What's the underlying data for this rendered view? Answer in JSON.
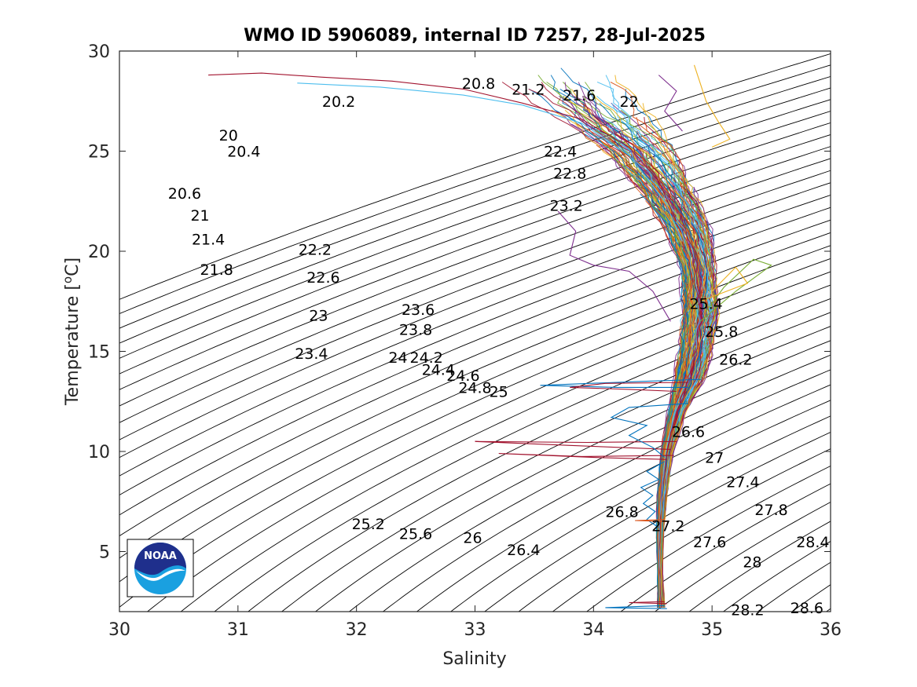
{
  "chart_data": {
    "type": "line",
    "title": "WMO ID 5906089, internal ID 7257, 28-Jul-2025",
    "xlabel": "Salinity",
    "ylabel": "Temperature [",
    "ylabel_sup": "o",
    "ylabel_unit": "C]",
    "xlim": [
      30,
      36
    ],
    "ylim": [
      2,
      30
    ],
    "xticks": [
      "30",
      "31",
      "32",
      "33",
      "34",
      "35",
      "36"
    ],
    "yticks": [
      "5",
      "10",
      "15",
      "20",
      "25",
      "30"
    ],
    "grid": false,
    "logo": {
      "name": "noaa-logo",
      "text": "NOAA",
      "colors": {
        "top": "#1f2f8c",
        "bottom": "#1aa0e0"
      }
    },
    "density_contours": {
      "range": [
        19.0,
        29.2
      ],
      "step": 0.2,
      "color": "#000000",
      "labels": [
        {
          "text": "20",
          "s": 30.92,
          "t": 25.8
        },
        {
          "text": "20.2",
          "s": 31.85,
          "t": 27.5
        },
        {
          "text": "20.4",
          "s": 31.05,
          "t": 25.0
        },
        {
          "text": "20.6",
          "s": 30.55,
          "t": 22.9
        },
        {
          "text": "20.8",
          "s": 33.03,
          "t": 28.4
        },
        {
          "text": "21",
          "s": 30.68,
          "t": 21.8
        },
        {
          "text": "21.2",
          "s": 33.45,
          "t": 28.1
        },
        {
          "text": "21.4",
          "s": 30.75,
          "t": 20.6
        },
        {
          "text": "21.6",
          "s": 33.88,
          "t": 27.8
        },
        {
          "text": "21.8",
          "s": 30.82,
          "t": 19.1
        },
        {
          "text": "22",
          "s": 34.3,
          "t": 27.5
        },
        {
          "text": "22.2",
          "s": 31.65,
          "t": 20.1
        },
        {
          "text": "22.4",
          "s": 33.72,
          "t": 25.0
        },
        {
          "text": "22.6",
          "s": 31.72,
          "t": 18.7
        },
        {
          "text": "22.8",
          "s": 33.8,
          "t": 23.9
        },
        {
          "text": "23",
          "s": 31.68,
          "t": 16.8
        },
        {
          "text": "23.2",
          "s": 33.77,
          "t": 22.3
        },
        {
          "text": "23.4",
          "s": 31.62,
          "t": 14.9
        },
        {
          "text": "23.6",
          "s": 32.52,
          "t": 17.1
        },
        {
          "text": "23.8",
          "s": 32.5,
          "t": 16.1
        },
        {
          "text": "24",
          "s": 32.35,
          "t": 14.7
        },
        {
          "text": "24.2",
          "s": 32.59,
          "t": 14.7
        },
        {
          "text": "24.4",
          "s": 32.69,
          "t": 14.1
        },
        {
          "text": "24.6",
          "s": 32.9,
          "t": 13.8
        },
        {
          "text": "24.8",
          "s": 33.0,
          "t": 13.2
        },
        {
          "text": "25",
          "s": 33.2,
          "t": 13.0
        },
        {
          "text": "25.2",
          "s": 32.1,
          "t": 6.4
        },
        {
          "text": "25.4",
          "s": 34.95,
          "t": 17.4
        },
        {
          "text": "25.6",
          "s": 32.5,
          "t": 5.9
        },
        {
          "text": "25.8",
          "s": 35.08,
          "t": 16.0
        },
        {
          "text": "26",
          "s": 32.98,
          "t": 5.7
        },
        {
          "text": "26.2",
          "s": 35.2,
          "t": 14.6
        },
        {
          "text": "26.4",
          "s": 33.41,
          "t": 5.1
        },
        {
          "text": "26.6",
          "s": 34.8,
          "t": 11.0
        },
        {
          "text": "26.8",
          "s": 34.24,
          "t": 7.0
        },
        {
          "text": "27",
          "s": 35.02,
          "t": 9.7
        },
        {
          "text": "27.2",
          "s": 34.63,
          "t": 6.3
        },
        {
          "text": "27.4",
          "s": 35.26,
          "t": 8.5
        },
        {
          "text": "27.6",
          "s": 34.98,
          "t": 5.5
        },
        {
          "text": "27.8",
          "s": 35.5,
          "t": 7.1
        },
        {
          "text": "28",
          "s": 35.34,
          "t": 4.5
        },
        {
          "text": "28.2",
          "s": 35.3,
          "t": 2.1
        },
        {
          "text": "28.4",
          "s": 35.85,
          "t": 5.5
        },
        {
          "text": "28.6",
          "s": 35.8,
          "t": 2.2
        }
      ]
    },
    "series_colors": [
      "#0072bd",
      "#d95319",
      "#edb120",
      "#7e2f8e",
      "#77ac30",
      "#4dbeee",
      "#a2142f"
    ],
    "profile_count": 150,
    "envelope_t": [
      2.2,
      4,
      6,
      8,
      10,
      12,
      13.5,
      15,
      17,
      19,
      21,
      23,
      25,
      27,
      28.8
    ],
    "envelope_s_center": [
      34.57,
      34.56,
      34.56,
      34.58,
      34.62,
      34.7,
      34.8,
      34.86,
      34.9,
      34.88,
      34.8,
      34.62,
      34.38,
      34.0,
      33.7
    ],
    "envelope_s_spread": [
      0.03,
      0.02,
      0.03,
      0.04,
      0.05,
      0.07,
      0.12,
      0.14,
      0.15,
      0.14,
      0.18,
      0.22,
      0.3,
      0.4,
      0.5
    ],
    "outliers": [
      {
        "name": "surface-inflow-long",
        "color": "#a2142f",
        "points": [
          [
            30.75,
            28.8
          ],
          [
            31.2,
            28.9
          ],
          [
            31.7,
            28.7
          ],
          [
            32.3,
            28.5
          ],
          [
            32.9,
            28.1
          ],
          [
            33.4,
            27.4
          ],
          [
            33.9,
            26.6
          ],
          [
            34.3,
            25.2
          ],
          [
            34.55,
            23.5
          ],
          [
            34.7,
            21.5
          ]
        ]
      },
      {
        "name": "surface-inflow-cyan",
        "color": "#4dbeee",
        "points": [
          [
            31.5,
            28.4
          ],
          [
            32.2,
            28.2
          ],
          [
            32.9,
            27.8
          ],
          [
            33.4,
            27.3
          ],
          [
            33.9,
            26.4
          ],
          [
            34.3,
            24.8
          ],
          [
            34.6,
            22.5
          ],
          [
            34.75,
            20.5
          ]
        ]
      },
      {
        "name": "intrusion-13",
        "color": "#0072bd",
        "points": [
          [
            34.9,
            13.6
          ],
          [
            34.4,
            13.5
          ],
          [
            33.55,
            13.3
          ],
          [
            34.2,
            13.2
          ],
          [
            34.8,
            13.2
          ]
        ]
      },
      {
        "name": "intrusion-13b",
        "color": "#a2142f",
        "points": [
          [
            34.8,
            13.45
          ],
          [
            34.1,
            13.4
          ],
          [
            33.8,
            13.2
          ],
          [
            34.3,
            13.1
          ],
          [
            34.7,
            13.0
          ]
        ]
      },
      {
        "name": "intrusion-10a",
        "color": "#a2142f",
        "points": [
          [
            34.7,
            10.5
          ],
          [
            33.95,
            10.45
          ],
          [
            33.0,
            10.5
          ],
          [
            33.8,
            10.3
          ],
          [
            34.65,
            10.1
          ]
        ]
      },
      {
        "name": "intrusion-10b",
        "color": "#a2142f",
        "points": [
          [
            34.68,
            9.8
          ],
          [
            33.9,
            9.75
          ],
          [
            33.2,
            9.9
          ],
          [
            34.0,
            9.7
          ],
          [
            34.62,
            9.6
          ]
        ]
      },
      {
        "name": "intrusion-11",
        "color": "#0072bd",
        "points": [
          [
            34.8,
            12.4
          ],
          [
            34.3,
            12.2
          ],
          [
            34.15,
            11.7
          ],
          [
            34.45,
            11.3
          ],
          [
            34.3,
            10.8
          ],
          [
            34.5,
            10.2
          ],
          [
            34.6,
            9.7
          ]
        ]
      },
      {
        "name": "wiggle-deep",
        "color": "#0072bd",
        "points": [
          [
            34.6,
            9.5
          ],
          [
            34.45,
            9.0
          ],
          [
            34.55,
            8.6
          ],
          [
            34.4,
            8.2
          ],
          [
            34.5,
            7.8
          ],
          [
            34.42,
            7.4
          ],
          [
            34.52,
            7.0
          ],
          [
            34.45,
            6.6
          ],
          [
            34.55,
            6.2
          ]
        ]
      },
      {
        "name": "bottom-spike",
        "color": "#0072bd",
        "points": [
          [
            34.6,
            2.3
          ],
          [
            34.1,
            2.2
          ],
          [
            34.62,
            2.15
          ]
        ]
      },
      {
        "name": "bottom-spike-2",
        "color": "#a2142f",
        "points": [
          [
            34.6,
            2.5
          ],
          [
            34.3,
            2.45
          ],
          [
            34.62,
            2.4
          ]
        ]
      },
      {
        "name": "mid-spike",
        "color": "#d95319",
        "points": [
          [
            34.6,
            6.6
          ],
          [
            34.35,
            6.55
          ],
          [
            34.62,
            6.5
          ]
        ]
      },
      {
        "name": "low-s-branch",
        "color": "#7e2f8e",
        "points": [
          [
            33.7,
            22.0
          ],
          [
            33.85,
            21.0
          ],
          [
            33.8,
            19.8
          ],
          [
            34.0,
            19.3
          ],
          [
            34.3,
            19.0
          ],
          [
            34.5,
            18.0
          ],
          [
            34.65,
            16.5
          ]
        ]
      },
      {
        "name": "right-excursion",
        "color": "#77ac30",
        "points": [
          [
            34.9,
            16.5
          ],
          [
            35.2,
            18.0
          ],
          [
            35.5,
            19.3
          ],
          [
            35.35,
            19.6
          ],
          [
            35.1,
            18.2
          ],
          [
            34.95,
            17.0
          ]
        ]
      },
      {
        "name": "right-excursion-2",
        "color": "#edb120",
        "points": [
          [
            34.9,
            17.5
          ],
          [
            35.3,
            18.4
          ],
          [
            35.2,
            19.2
          ],
          [
            35.0,
            18.0
          ]
        ]
      },
      {
        "name": "upper-right-spikes",
        "color": "#7e2f8e",
        "points": [
          [
            34.55,
            28.8
          ],
          [
            34.7,
            28.0
          ],
          [
            34.6,
            27.0
          ],
          [
            34.75,
            26.0
          ]
        ]
      },
      {
        "name": "upper-right-spikes-2",
        "color": "#edb120",
        "points": [
          [
            34.85,
            29.3
          ],
          [
            34.95,
            27.5
          ],
          [
            35.05,
            26.5
          ],
          [
            35.15,
            25.6
          ],
          [
            35.0,
            25.2
          ]
        ]
      }
    ]
  }
}
